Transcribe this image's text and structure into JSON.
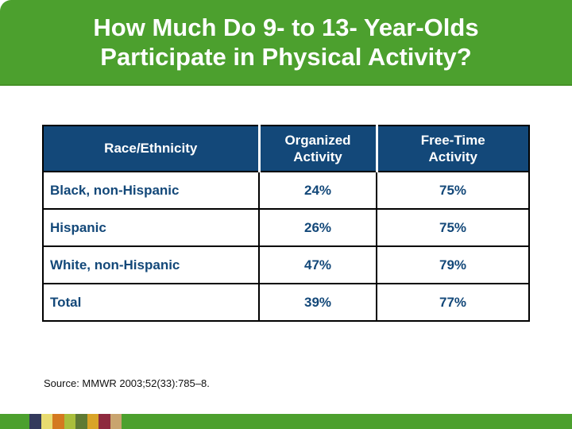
{
  "title": {
    "line1": "How Much Do 9- to 13- Year-Olds",
    "line2": "Participate in Physical Activity?"
  },
  "table": {
    "headers": [
      "Race/Ethnicity",
      "Organized\nActivity",
      "Free-Time\nActivity"
    ]
  },
  "chart_data": {
    "type": "table",
    "title": "How Much Do 9- to 13- Year-Olds Participate in Physical Activity?",
    "columns": [
      "Race/Ethnicity",
      "Organized Activity",
      "Free-Time Activity"
    ],
    "rows": [
      [
        "Black, non-Hispanic",
        "24%",
        "75%"
      ],
      [
        "Hispanic",
        "26%",
        "75%"
      ],
      [
        "White, non-Hispanic",
        "47%",
        "79%"
      ],
      [
        "Total",
        "39%",
        "77%"
      ]
    ],
    "source": "Source: MMWR 2003;52(33):785–8."
  },
  "footer": {
    "squares": [
      "#333A5C",
      "#E8DB70",
      "#D4791F",
      "#A9BE3B",
      "#5F7A33",
      "#D9A428",
      "#8E2A3E",
      "#C9A46F"
    ]
  },
  "colors": {
    "banner_green": "#4CA02E",
    "banner_edge_green": "#469127",
    "header_navy": "#134879",
    "table_text_navy": "#134879",
    "table_border": "#000000",
    "title_text": "#ffffff"
  }
}
